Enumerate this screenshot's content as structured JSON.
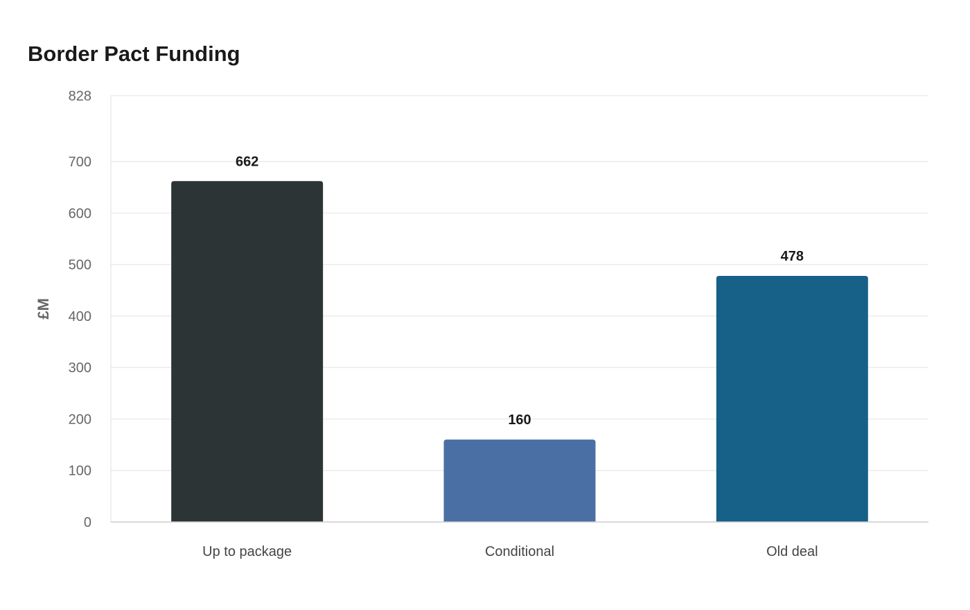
{
  "chart_data": {
    "type": "bar",
    "title": "Border Pact Funding",
    "xlabel": "",
    "ylabel": "£M",
    "categories": [
      "Up to package",
      "Conditional",
      "Old deal"
    ],
    "values": [
      662,
      160,
      478
    ],
    "colors": [
      "#2d3436",
      "#4a6fa5",
      "#176087"
    ],
    "yticks": [
      0,
      100,
      200,
      300,
      400,
      500,
      600,
      700,
      828
    ],
    "ylim": [
      0,
      828
    ],
    "grid": true,
    "data_labels": true
  }
}
